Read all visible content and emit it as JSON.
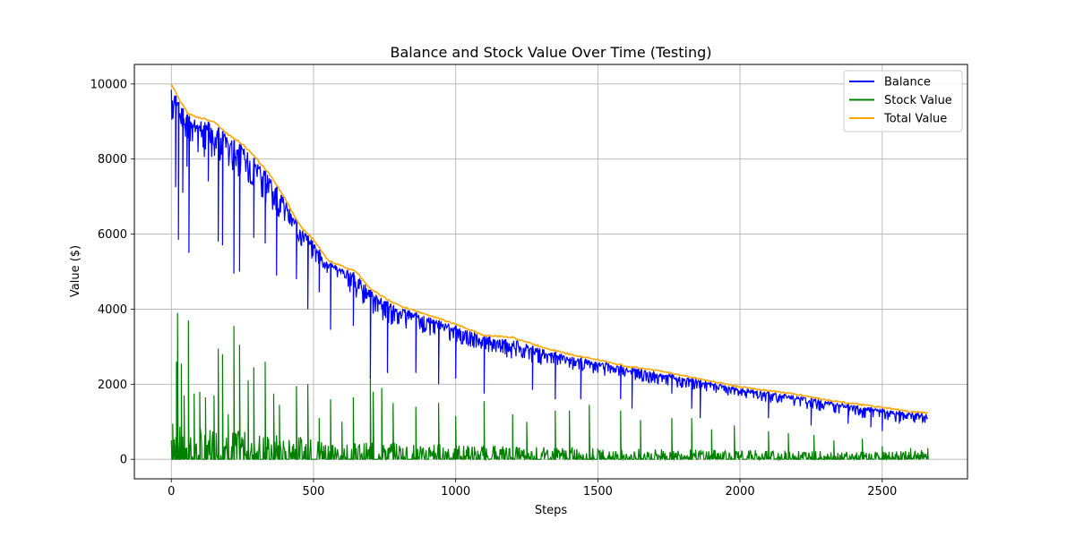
{
  "chart_data": {
    "type": "line",
    "title": "Balance and Stock Value Over Time (Testing)",
    "xlabel": "Steps",
    "ylabel": "Value ($)",
    "xlim": [
      -130,
      2800
    ],
    "ylim": [
      -520,
      10520
    ],
    "x_ticks": [
      0,
      500,
      1000,
      1500,
      2000,
      2500
    ],
    "y_ticks": [
      0,
      2000,
      4000,
      6000,
      8000,
      10000
    ],
    "grid": true,
    "legend_position": "top-right",
    "x_range": [
      0,
      2660
    ],
    "series": [
      {
        "name": "Balance",
        "color": "#0000ff",
        "upper_envelope": {
          "x": [
            0,
            30,
            60,
            100,
            150,
            200,
            250,
            300,
            350,
            400,
            450,
            500,
            550,
            600,
            650,
            700,
            750,
            800,
            900,
            1000,
            1100,
            1200,
            1300,
            1400,
            1500,
            1600,
            1700,
            1800,
            1900,
            2000,
            2100,
            2200,
            2300,
            2400,
            2500,
            2600,
            2660
          ],
          "y": [
            9950,
            9450,
            9150,
            9050,
            8950,
            8600,
            8350,
            7950,
            7500,
            6900,
            6200,
            5800,
            5250,
            5100,
            4950,
            4500,
            4250,
            4050,
            3800,
            3550,
            3280,
            3200,
            2950,
            2750,
            2620,
            2450,
            2350,
            2200,
            2050,
            1900,
            1800,
            1700,
            1560,
            1450,
            1350,
            1250,
            1220
          ]
        },
        "typical_low": {
          "x": [
            0,
            100,
            200,
            300,
            400,
            500,
            600,
            700,
            800,
            1000,
            1200,
            1500,
            2000,
            2500,
            2660
          ],
          "y": [
            9000,
            8100,
            7700,
            7100,
            6200,
            5200,
            4700,
            3800,
            3500,
            3100,
            2650,
            2250,
            1650,
            1000,
            950
          ]
        },
        "dips": [
          {
            "x": 15,
            "y": 7250
          },
          {
            "x": 25,
            "y": 5850
          },
          {
            "x": 40,
            "y": 7100
          },
          {
            "x": 55,
            "y": 7800
          },
          {
            "x": 62,
            "y": 5500
          },
          {
            "x": 130,
            "y": 7400
          },
          {
            "x": 165,
            "y": 5800
          },
          {
            "x": 180,
            "y": 5700
          },
          {
            "x": 220,
            "y": 4950
          },
          {
            "x": 240,
            "y": 5000
          },
          {
            "x": 290,
            "y": 5900
          },
          {
            "x": 330,
            "y": 5750
          },
          {
            "x": 370,
            "y": 4900
          },
          {
            "x": 440,
            "y": 4800
          },
          {
            "x": 480,
            "y": 4000
          },
          {
            "x": 520,
            "y": 4450
          },
          {
            "x": 560,
            "y": 3450
          },
          {
            "x": 640,
            "y": 3550
          },
          {
            "x": 700,
            "y": 2150
          },
          {
            "x": 760,
            "y": 2300
          },
          {
            "x": 860,
            "y": 2300
          },
          {
            "x": 940,
            "y": 2000
          },
          {
            "x": 1000,
            "y": 2150
          },
          {
            "x": 1100,
            "y": 1750
          },
          {
            "x": 1270,
            "y": 1850
          },
          {
            "x": 1350,
            "y": 1600
          },
          {
            "x": 1440,
            "y": 1600
          },
          {
            "x": 1580,
            "y": 1600
          },
          {
            "x": 1620,
            "y": 1350
          },
          {
            "x": 1760,
            "y": 1750
          },
          {
            "x": 1830,
            "y": 1350
          },
          {
            "x": 1860,
            "y": 1100
          },
          {
            "x": 2100,
            "y": 1100
          },
          {
            "x": 2250,
            "y": 900
          },
          {
            "x": 2380,
            "y": 950
          },
          {
            "x": 2460,
            "y": 850
          },
          {
            "x": 2500,
            "y": 750
          },
          {
            "x": 2560,
            "y": 950
          }
        ]
      },
      {
        "name": "Stock Value",
        "color": "#008000",
        "typical_high": {
          "x": [
            0,
            100,
            200,
            300,
            400,
            500,
            600,
            700,
            800,
            1000,
            1200,
            1500,
            2000,
            2500,
            2660
          ],
          "y": [
            900,
            900,
            800,
            700,
            650,
            550,
            450,
            450,
            450,
            400,
            350,
            300,
            250,
            200,
            250
          ]
        },
        "spikes": [
          {
            "x": 5,
            "y": 950
          },
          {
            "x": 18,
            "y": 2600
          },
          {
            "x": 22,
            "y": 3900
          },
          {
            "x": 35,
            "y": 2550
          },
          {
            "x": 45,
            "y": 1700
          },
          {
            "x": 60,
            "y": 3700
          },
          {
            "x": 80,
            "y": 1750
          },
          {
            "x": 100,
            "y": 1800
          },
          {
            "x": 120,
            "y": 1650
          },
          {
            "x": 150,
            "y": 1700
          },
          {
            "x": 165,
            "y": 2950
          },
          {
            "x": 180,
            "y": 2800
          },
          {
            "x": 200,
            "y": 1200
          },
          {
            "x": 220,
            "y": 3550
          },
          {
            "x": 240,
            "y": 3050
          },
          {
            "x": 270,
            "y": 2100
          },
          {
            "x": 290,
            "y": 2450
          },
          {
            "x": 330,
            "y": 2600
          },
          {
            "x": 360,
            "y": 1750
          },
          {
            "x": 380,
            "y": 1450
          },
          {
            "x": 440,
            "y": 1950
          },
          {
            "x": 480,
            "y": 2000
          },
          {
            "x": 520,
            "y": 1100
          },
          {
            "x": 560,
            "y": 1600
          },
          {
            "x": 600,
            "y": 1000
          },
          {
            "x": 640,
            "y": 1650
          },
          {
            "x": 700,
            "y": 2250
          },
          {
            "x": 710,
            "y": 1800
          },
          {
            "x": 740,
            "y": 1900
          },
          {
            "x": 780,
            "y": 1500
          },
          {
            "x": 860,
            "y": 1400
          },
          {
            "x": 940,
            "y": 1500
          },
          {
            "x": 1000,
            "y": 1150
          },
          {
            "x": 1100,
            "y": 1550
          },
          {
            "x": 1200,
            "y": 1200
          },
          {
            "x": 1250,
            "y": 1000
          },
          {
            "x": 1350,
            "y": 1300
          },
          {
            "x": 1400,
            "y": 1300
          },
          {
            "x": 1470,
            "y": 1450
          },
          {
            "x": 1580,
            "y": 1300
          },
          {
            "x": 1650,
            "y": 1050
          },
          {
            "x": 1760,
            "y": 1100
          },
          {
            "x": 1830,
            "y": 1100
          },
          {
            "x": 1900,
            "y": 800
          },
          {
            "x": 1980,
            "y": 900
          },
          {
            "x": 2100,
            "y": 750
          },
          {
            "x": 2170,
            "y": 700
          },
          {
            "x": 2260,
            "y": 650
          },
          {
            "x": 2330,
            "y": 500
          },
          {
            "x": 2430,
            "y": 550
          },
          {
            "x": 2500,
            "y": 350
          },
          {
            "x": 2600,
            "y": 300
          },
          {
            "x": 2660,
            "y": 300
          }
        ]
      },
      {
        "name": "Total Value",
        "color": "#ffa500",
        "x": [
          0,
          30,
          60,
          100,
          150,
          200,
          250,
          300,
          350,
          400,
          450,
          500,
          550,
          600,
          650,
          700,
          750,
          800,
          900,
          1000,
          1100,
          1200,
          1300,
          1400,
          1500,
          1600,
          1700,
          1800,
          1900,
          2000,
          2100,
          2200,
          2300,
          2400,
          2500,
          2600,
          2660
        ],
        "y": [
          10000,
          9550,
          9200,
          9100,
          9000,
          8650,
          8400,
          8000,
          7550,
          6950,
          6250,
          5850,
          5300,
          5150,
          5000,
          4550,
          4300,
          4100,
          3850,
          3600,
          3300,
          3250,
          3000,
          2800,
          2650,
          2480,
          2380,
          2230,
          2080,
          1930,
          1830,
          1730,
          1590,
          1480,
          1380,
          1270,
          1240
        ]
      }
    ]
  }
}
